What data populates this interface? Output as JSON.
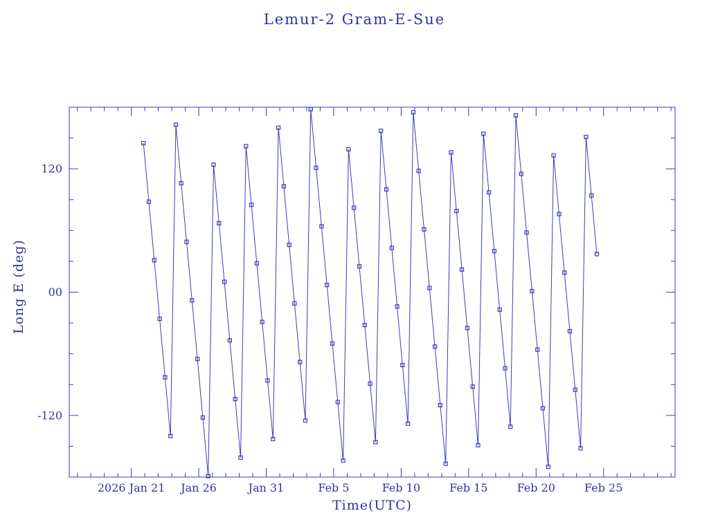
{
  "colors": {
    "line": "#3b3bbe",
    "text": "#32329f",
    "background": "#ffffff"
  },
  "chart_data": {
    "type": "line",
    "title": "Lemur-2 Gram-E-Sue",
    "xlabel": "Time(UTC)",
    "ylabel": "Long E (deg)",
    "x_unit": "days since 2026 Jan 21 00:00 UTC",
    "xlim": [
      -4.6,
      40.3
    ],
    "ylim": [
      -180,
      180
    ],
    "x_minor_step": 1,
    "y_minor_step": 30,
    "marker": "open-square",
    "x_major_ticks": [
      {
        "value": 0,
        "label": "2026 Jan 21"
      },
      {
        "value": 5,
        "label": "Jan 26"
      },
      {
        "value": 10,
        "label": "Jan 31"
      },
      {
        "value": 15,
        "label": "Feb 5"
      },
      {
        "value": 20,
        "label": "Feb 10"
      },
      {
        "value": 25,
        "label": "Feb 15"
      },
      {
        "value": 30,
        "label": "Feb 20"
      },
      {
        "value": 35,
        "label": "Feb 25"
      }
    ],
    "y_major_ticks": [
      {
        "value": 120,
        "label": "120"
      },
      {
        "value": 0,
        "label": "00"
      },
      {
        "value": -120,
        "label": "-120"
      }
    ],
    "points": [
      [
        0.9,
        145
      ],
      [
        1.3,
        88
      ],
      [
        1.7,
        31
      ],
      [
        2.1,
        -26
      ],
      [
        2.5,
        -83
      ],
      [
        2.9,
        -140
      ],
      [
        3.3,
        163
      ],
      [
        3.7,
        106
      ],
      [
        4.1,
        49
      ],
      [
        4.5,
        -8
      ],
      [
        4.9,
        -65
      ],
      [
        5.3,
        -122
      ],
      [
        5.7,
        -179
      ],
      [
        6.1,
        124
      ],
      [
        6.5,
        67
      ],
      [
        6.9,
        10
      ],
      [
        7.3,
        -47
      ],
      [
        7.7,
        -104
      ],
      [
        8.1,
        -161
      ],
      [
        8.5,
        142
      ],
      [
        8.9,
        85
      ],
      [
        9.3,
        28
      ],
      [
        9.7,
        -29
      ],
      [
        10.1,
        -86
      ],
      [
        10.5,
        -143
      ],
      [
        10.9,
        160
      ],
      [
        11.3,
        103
      ],
      [
        11.7,
        46
      ],
      [
        12.1,
        -11
      ],
      [
        12.5,
        -68
      ],
      [
        12.9,
        -125
      ],
      [
        13.3,
        178
      ],
      [
        13.7,
        121
      ],
      [
        14.1,
        64
      ],
      [
        14.5,
        7
      ],
      [
        14.9,
        -50
      ],
      [
        15.3,
        -107
      ],
      [
        15.7,
        -164
      ],
      [
        16.1,
        139
      ],
      [
        16.5,
        82
      ],
      [
        16.9,
        25
      ],
      [
        17.3,
        -32
      ],
      [
        17.7,
        -89
      ],
      [
        18.1,
        -146
      ],
      [
        18.5,
        157
      ],
      [
        18.9,
        100
      ],
      [
        19.3,
        43
      ],
      [
        19.7,
        -14
      ],
      [
        20.1,
        -71
      ],
      [
        20.5,
        -128
      ],
      [
        20.9,
        175
      ],
      [
        21.3,
        118
      ],
      [
        21.7,
        61
      ],
      [
        22.1,
        4
      ],
      [
        22.5,
        -53
      ],
      [
        22.9,
        -110
      ],
      [
        23.3,
        -167
      ],
      [
        23.7,
        136
      ],
      [
        24.1,
        79
      ],
      [
        24.5,
        22
      ],
      [
        24.9,
        -35
      ],
      [
        25.3,
        -92
      ],
      [
        25.7,
        -149
      ],
      [
        26.1,
        154
      ],
      [
        26.5,
        97
      ],
      [
        26.9,
        40
      ],
      [
        27.3,
        -17
      ],
      [
        27.7,
        -74
      ],
      [
        28.1,
        -131
      ],
      [
        28.5,
        172
      ],
      [
        28.9,
        115
      ],
      [
        29.3,
        58
      ],
      [
        29.7,
        1
      ],
      [
        30.1,
        -56
      ],
      [
        30.5,
        -113
      ],
      [
        30.9,
        -170
      ],
      [
        31.3,
        133
      ],
      [
        31.7,
        76
      ],
      [
        32.1,
        19
      ],
      [
        32.5,
        -38
      ],
      [
        32.9,
        -95
      ],
      [
        33.3,
        -152
      ],
      [
        33.7,
        151
      ],
      [
        34.1,
        94
      ],
      [
        34.5,
        37
      ]
    ]
  }
}
